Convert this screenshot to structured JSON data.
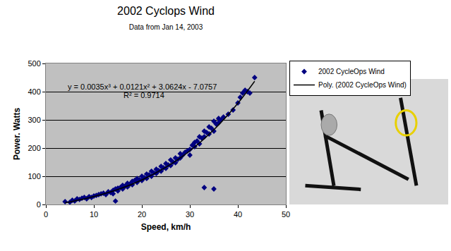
{
  "chart_data": {
    "type": "scatter",
    "title": "2002 Cyclops Wind",
    "subtitle": "Data from Jan 14, 2003",
    "x_label": "Speed, km/h",
    "y_label": "Power. Watts",
    "xlim": [
      0,
      50
    ],
    "xticks": [
      0,
      10,
      20,
      30,
      40,
      50
    ],
    "ylim": [
      0,
      500
    ],
    "yticks": [
      0,
      100,
      200,
      300,
      400,
      500
    ],
    "grid": true,
    "legend": "right",
    "annotations": [
      {
        "text": "y = 0.0035x³ + 0.0121x² + 3.0624x - 7.0757",
        "x": 20,
        "y": 417
      },
      {
        "text": "R² = 0.9714",
        "x": 20.5,
        "y": 388
      }
    ],
    "series": [
      {
        "name": "2002 CycleOps Wind",
        "type": "scatter",
        "marker": "diamond",
        "color": "#000080",
        "x": [
          4,
          5,
          5.5,
          6,
          6.5,
          7,
          7.5,
          8,
          8.5,
          9,
          9.5,
          10,
          10.5,
          11,
          11.5,
          12,
          12.5,
          13,
          13.5,
          14,
          14,
          14.5,
          15,
          15,
          15.5,
          16,
          16,
          16.5,
          17,
          17,
          17.5,
          18,
          18,
          18.5,
          19,
          19,
          19.5,
          20,
          20,
          14.5,
          20.5,
          21,
          21,
          21.5,
          22,
          22,
          22.5,
          23,
          23,
          23.5,
          24,
          24,
          24.5,
          25,
          25,
          25.5,
          26,
          26,
          26.5,
          27,
          27,
          27.5,
          28,
          28,
          28.5,
          29,
          29.5,
          30,
          30,
          30.5,
          31,
          31,
          31.5,
          32,
          32,
          32.5,
          33,
          33,
          33.5,
          34,
          34,
          34.5,
          35,
          35,
          35.5,
          36,
          36,
          36.5,
          37,
          38,
          39,
          40,
          40.5,
          41,
          41.5,
          42,
          42.5,
          43.5,
          33,
          35
        ],
        "values": [
          10,
          8,
          15,
          12,
          20,
          18,
          22,
          25,
          20,
          28,
          25,
          30,
          32,
          35,
          38,
          40,
          35,
          45,
          42,
          50,
          38,
          55,
          48,
          58,
          60,
          55,
          68,
          65,
          62,
          75,
          72,
          70,
          82,
          85,
          78,
          92,
          88,
          85,
          100,
          12,
          95,
          92,
          108,
          105,
          100,
          118,
          112,
          110,
          125,
          120,
          118,
          135,
          130,
          128,
          145,
          140,
          138,
          158,
          150,
          148,
          165,
          160,
          165,
          180,
          175,
          185,
          190,
          195,
          175,
          210,
          205,
          220,
          225,
          215,
          240,
          235,
          240,
          260,
          255,
          250,
          275,
          270,
          260,
          295,
          285,
          290,
          305,
          300,
          310,
          320,
          335,
          360,
          380,
          395,
          405,
          400,
          395,
          450,
          60,
          55
        ]
      },
      {
        "name": "Poly. (2002 CycleOps Wind)",
        "type": "line",
        "line_style": "solid",
        "color": "#000000",
        "x": [
          4,
          5,
          10,
          15,
          20,
          25,
          30,
          35,
          40,
          43.5
        ],
        "values": [
          6,
          9,
          28,
          53,
          87,
          132,
          190,
          265,
          359,
          437
        ]
      }
    ]
  }
}
